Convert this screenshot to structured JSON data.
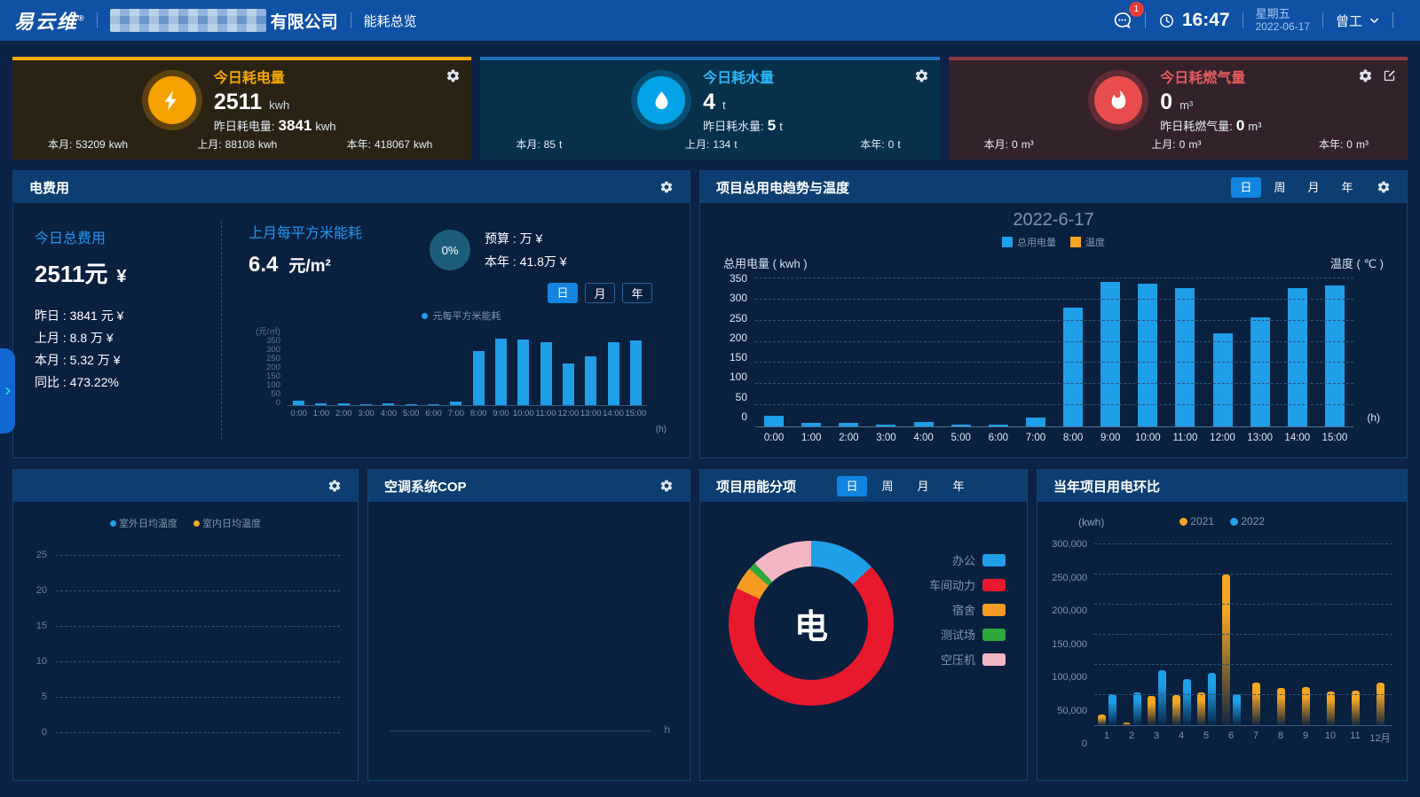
{
  "header": {
    "logo": "易云维",
    "logo_reg": "®",
    "company_suffix": "有限公司",
    "nav_label": "能耗总览",
    "badge_count": "1",
    "time": "16:47",
    "weekday": "星期五",
    "date": "2022-06-17",
    "user": "曾工"
  },
  "cards": {
    "electricity": {
      "title": "今日耗电量",
      "value": "2511",
      "unit": "kwh",
      "yesterday_label": "昨日耗电量:",
      "yesterday_value": "3841",
      "yesterday_unit": "kwh",
      "stats": [
        {
          "label": "本月:",
          "value": "53209",
          "unit": "kwh"
        },
        {
          "label": "上月:",
          "value": "88108",
          "unit": "kwh"
        },
        {
          "label": "本年:",
          "value": "418067",
          "unit": "kwh"
        }
      ]
    },
    "water": {
      "title": "今日耗水量",
      "value": "4",
      "unit": "t",
      "yesterday_label": "昨日耗水量:",
      "yesterday_value": "5",
      "yesterday_unit": "t",
      "stats": [
        {
          "label": "本月:",
          "value": "85",
          "unit": "t"
        },
        {
          "label": "上月:",
          "value": "134",
          "unit": "t"
        },
        {
          "label": "本年:",
          "value": "0",
          "unit": "t"
        }
      ]
    },
    "gas": {
      "title": "今日耗燃气量",
      "value": "0",
      "unit": "m³",
      "yesterday_label": "昨日耗燃气量:",
      "yesterday_value": "0",
      "yesterday_unit": "m³",
      "stats": [
        {
          "label": "本月:",
          "value": "0",
          "unit": "m³"
        },
        {
          "label": "上月:",
          "value": "0",
          "unit": "m³"
        },
        {
          "label": "本年:",
          "value": "0",
          "unit": "m³"
        }
      ]
    }
  },
  "cost_panel": {
    "title": "电费用",
    "today_label": "今日总费用",
    "today_value": "2511元",
    "currency": "¥",
    "rows": [
      "昨日 : 3841 元 ¥",
      "上月 : 8.8 万 ¥",
      "本月 : 5.32 万 ¥",
      "同比 : 473.22%"
    ],
    "sqm_label": "上月每平方米能耗",
    "sqm_value": "6.4",
    "sqm_unit": "元/m²",
    "progress": "0%",
    "budget_line": "预算 : 万 ¥",
    "year_line": "本年 : 41.8万 ¥",
    "tabs": [
      "日",
      "月",
      "年"
    ],
    "legend": "元每平方米能耗"
  },
  "trend_panel": {
    "title": "项目总用电趋势与温度",
    "tabs": [
      "日",
      "周",
      "月",
      "年"
    ],
    "chart_title": "2022-6-17",
    "legend": [
      "总用电量",
      "温度"
    ],
    "left_axis": "总用电量 ( kwh )",
    "right_axis": "温度 ( ℃ )",
    "x_unit": "(h)"
  },
  "temperature_panel": {
    "legend": [
      "室外日均温度",
      "室内日均温度"
    ]
  },
  "cop_panel": {
    "title": "空调系统COP",
    "x_unit": "h"
  },
  "breakdown_panel": {
    "title": "项目用能分项",
    "tabs": [
      "日",
      "周",
      "月",
      "年"
    ],
    "center_label": "电"
  },
  "yearly_panel": {
    "title": "当年项目用电环比",
    "y_unit": "(kwh)",
    "legend": [
      "2021",
      "2022"
    ]
  },
  "chart_data": [
    {
      "id": "cost_per_sqm",
      "type": "bar",
      "title": "元每平方米能耗",
      "categories": [
        "0:00",
        "1:00",
        "2:00",
        "3:00",
        "4:00",
        "5:00",
        "6:00",
        "7:00",
        "8:00",
        "9:00",
        "10:00",
        "11:00",
        "12:00",
        "13:00",
        "14:00",
        "15:00"
      ],
      "values": [
        25,
        8,
        8,
        5,
        10,
        5,
        4,
        20,
        277,
        340,
        335,
        323,
        212,
        252,
        323,
        330
      ],
      "ylabel": "(元/㎡)",
      "xlabel": "(h)",
      "ylim": [
        0,
        350
      ],
      "yticks": [
        0,
        50,
        100,
        150,
        200,
        250,
        300,
        350
      ],
      "bar_color": "#1f9fe8",
      "grid": false
    },
    {
      "id": "power_trend",
      "type": "bar",
      "title": "2022-6-17",
      "categories": [
        "0:00",
        "1:00",
        "2:00",
        "3:00",
        "4:00",
        "5:00",
        "6:00",
        "7:00",
        "8:00",
        "9:00",
        "10:00",
        "11:00",
        "12:00",
        "13:00",
        "14:00",
        "15:00"
      ],
      "series": [
        {
          "name": "总用电量",
          "color": "#1f9fe8",
          "values": [
            25,
            8,
            8,
            5,
            10,
            5,
            4,
            20,
            280,
            342,
            337,
            328,
            220,
            258,
            328,
            333
          ]
        },
        {
          "name": "温度",
          "color": "#f5a623",
          "values": []
        }
      ],
      "ylabel": "总用电量 ( kwh )",
      "ylabel_right": "温度 ( ℃ )",
      "xlabel": "(h)",
      "ylim": [
        0,
        350
      ],
      "yticks": [
        0,
        50,
        100,
        150,
        200,
        250,
        300,
        350
      ],
      "grid": true,
      "legend_position": "top"
    },
    {
      "id": "daily_temperature",
      "type": "line",
      "series": [
        {
          "name": "室外日均温度",
          "color": "#1f9fe8",
          "values": []
        },
        {
          "name": "室内日均温度",
          "color": "#f5a623",
          "values": []
        }
      ],
      "ylim": [
        0,
        25
      ],
      "yticks": [
        0,
        5,
        10,
        15,
        20,
        25
      ],
      "grid": true
    },
    {
      "id": "cop",
      "type": "line",
      "series": [],
      "xlabel": "h"
    },
    {
      "id": "energy_breakdown",
      "type": "pie",
      "labels": [
        "办公",
        "车间动力",
        "宿舍",
        "测试场",
        "空压机"
      ],
      "values": [
        13,
        69,
        4.5,
        1.5,
        12
      ],
      "colors": [
        "#1f9fe8",
        "#e8192d",
        "#f59a23",
        "#2fa83c",
        "#f3b6c3"
      ],
      "center_label": "电",
      "legend_position": "right"
    },
    {
      "id": "yearly_compare",
      "type": "bar",
      "categories": [
        "1",
        "2",
        "3",
        "4",
        "5",
        "6",
        "7",
        "8",
        "9",
        "10",
        "11",
        "12月"
      ],
      "series": [
        {
          "name": "2021",
          "color": "#f5a623",
          "values": [
            18000,
            5000,
            49000,
            50000,
            55000,
            250000,
            70000,
            62000,
            63000,
            56000,
            57000,
            70000
          ]
        },
        {
          "name": "2022",
          "color": "#1f9fe8",
          "values": [
            52000,
            54000,
            91000,
            77000,
            87000,
            52000,
            null,
            null,
            null,
            null,
            null,
            null
          ]
        }
      ],
      "ylabel": "(kwh)",
      "ylim": [
        0,
        300000
      ],
      "yticks": [
        "0",
        "50,000",
        "100,000",
        "150,000",
        "200,000",
        "250,000",
        "300,000"
      ],
      "grid": true,
      "legend_position": "top"
    }
  ]
}
